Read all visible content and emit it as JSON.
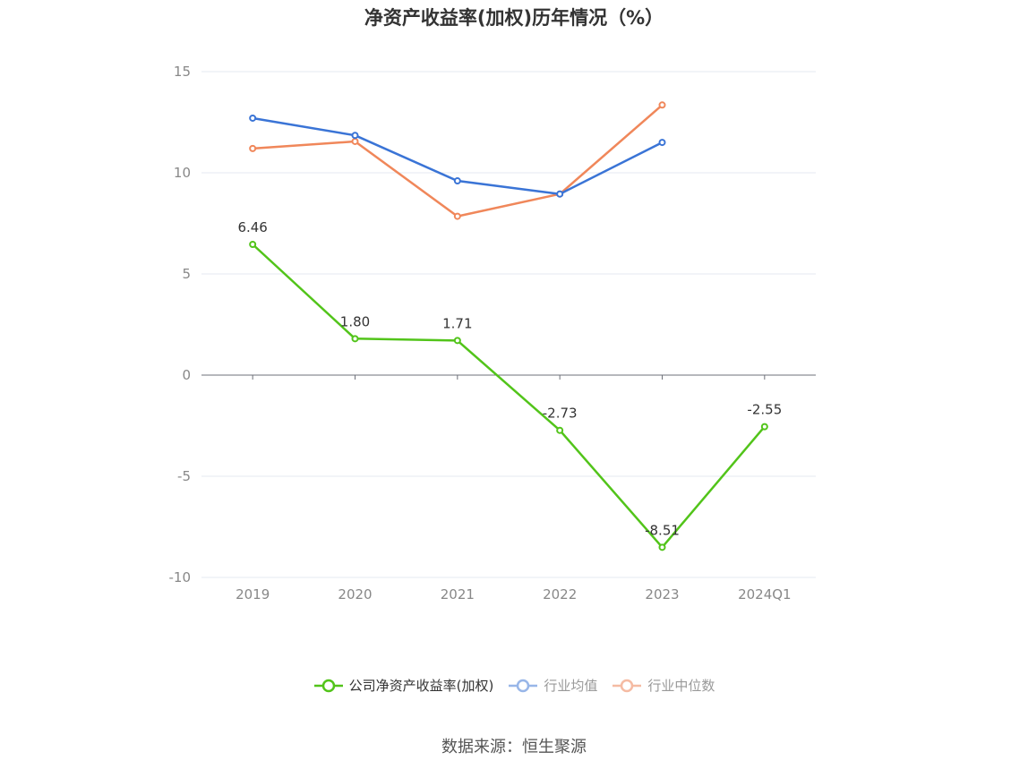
{
  "title": "净资产收益率(加权)历年情况（%）",
  "source": "数据来源：恒生聚源",
  "chart_data": {
    "type": "line",
    "categories": [
      "2019",
      "2020",
      "2021",
      "2022",
      "2023",
      "2024Q1"
    ],
    "ylim": [
      -10,
      15
    ],
    "yticks": [
      15,
      10,
      5,
      0,
      -5,
      -10
    ],
    "grid": true,
    "legend_position": "bottom",
    "series": [
      {
        "name": "公司净资产收益率(加权)",
        "color": "#52c41a",
        "legend_text_color": "#333333",
        "values": [
          6.46,
          1.8,
          1.71,
          -2.73,
          -8.51,
          -2.55
        ],
        "labels": [
          "6.46",
          "1.80",
          "1.71",
          "-2.73",
          "-8.51",
          "-2.55"
        ]
      },
      {
        "name": "行业均值",
        "color": "#3a74d6",
        "legend_color": "#98b6e8",
        "legend_text_color": "#999999",
        "values": [
          12.7,
          11.85,
          9.6,
          8.95,
          11.5,
          null
        ]
      },
      {
        "name": "行业中位数",
        "color": "#f0875a",
        "legend_color": "#f5bba3",
        "legend_text_color": "#999999",
        "values": [
          11.2,
          11.55,
          7.85,
          8.95,
          13.35,
          null
        ]
      }
    ]
  }
}
